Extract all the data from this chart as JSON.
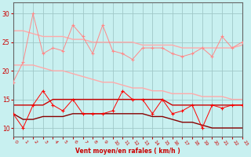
{
  "x": [
    0,
    1,
    2,
    3,
    4,
    5,
    6,
    7,
    8,
    9,
    10,
    11,
    12,
    13,
    14,
    15,
    16,
    17,
    18,
    19,
    20,
    21,
    22,
    23
  ],
  "background_color": "#c8f0f0",
  "grid_color": "#a0c8c8",
  "line_pink_jagged": [
    18,
    21.5,
    30,
    23,
    24,
    23.5,
    28,
    26,
    23,
    28,
    23.5,
    23,
    22,
    24,
    24,
    24,
    23,
    22.5,
    23,
    24,
    22.5,
    26,
    24,
    25
  ],
  "line_pink_upper_smooth": [
    27,
    27,
    26.5,
    26,
    26,
    26,
    25.5,
    25.5,
    25,
    25,
    25,
    25,
    25,
    24.5,
    24.5,
    24.5,
    24.5,
    24,
    24,
    24,
    24,
    24,
    24,
    24.5
  ],
  "line_pink_lower_smooth": [
    21,
    21,
    21,
    20.5,
    20,
    20,
    19.5,
    19,
    18.5,
    18,
    18,
    17.5,
    17,
    17,
    16.5,
    16.5,
    16,
    16,
    16,
    15.5,
    15.5,
    15.5,
    15,
    15
  ],
  "line_red_jagged": [
    12.5,
    10,
    14,
    16.5,
    14,
    13,
    15,
    12.5,
    12.5,
    12.5,
    13,
    16.5,
    15,
    15,
    12.5,
    15,
    12.5,
    13,
    14,
    10,
    14,
    13.5,
    14,
    14
  ],
  "line_red_upper_smooth": [
    14,
    14,
    14,
    14,
    15,
    15,
    15,
    15,
    15,
    15,
    15,
    15,
    15,
    15,
    15,
    15,
    14,
    14,
    14,
    14,
    14,
    14,
    14,
    14
  ],
  "line_red_lower_smooth": [
    12.5,
    11.5,
    11.5,
    12,
    12,
    12,
    12.5,
    12.5,
    12.5,
    12.5,
    12.5,
    12.5,
    12.5,
    12.5,
    12,
    12,
    11.5,
    11,
    11,
    10.5,
    10,
    10,
    10,
    10
  ],
  "color_pink_jagged": "#ff8888",
  "color_pink_upper_smooth": "#ffaaaa",
  "color_pink_lower_smooth": "#ffaaaa",
  "color_red_jagged": "#ff0000",
  "color_red_upper_smooth": "#cc0000",
  "color_red_lower_smooth": "#880000",
  "marker": "+",
  "ylabel_ticks": [
    10,
    15,
    20,
    25,
    30
  ],
  "xlabel": "Vent moyen/en rafales ( km/h )",
  "xlim": [
    0,
    23
  ],
  "ylim": [
    8.5,
    32
  ]
}
